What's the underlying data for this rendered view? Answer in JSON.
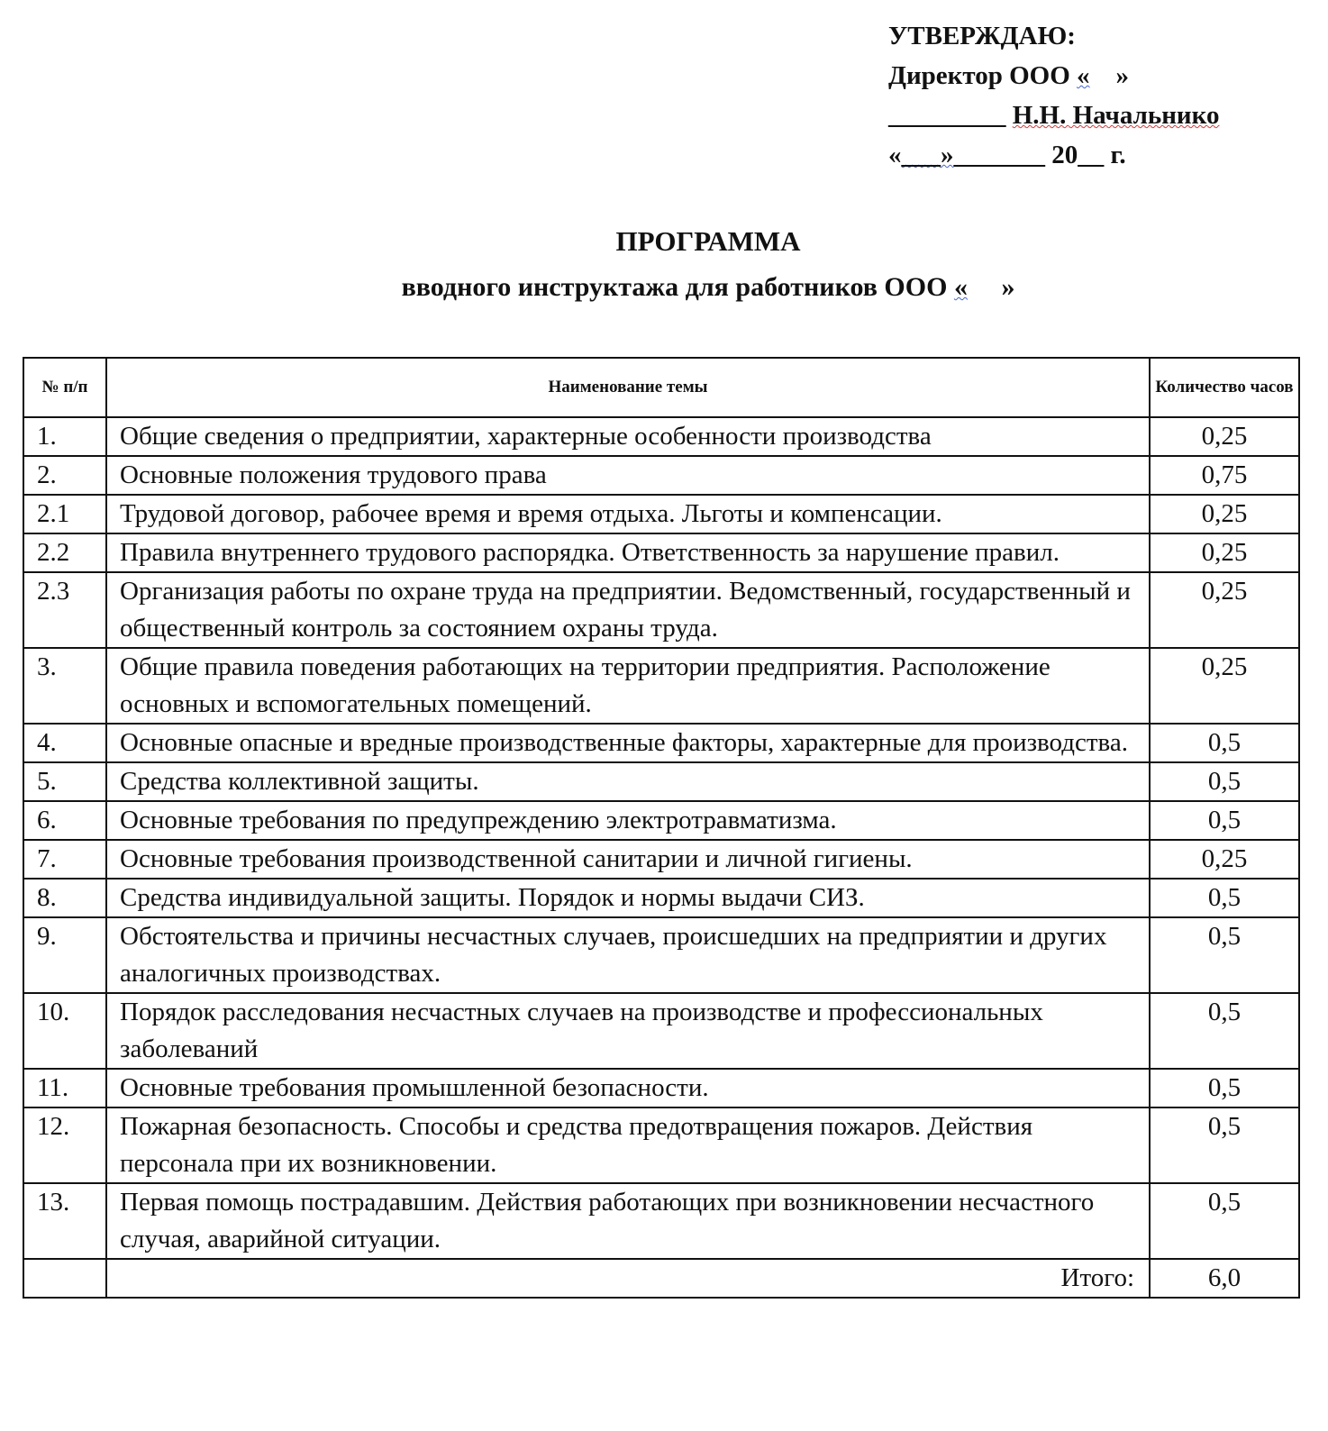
{
  "approval": {
    "line1": "УТВЕРЖДАЮ:",
    "line2_prefix": "Директор ООО ",
    "line2_quote_open": "«",
    "line2_quote_close": "    »",
    "line3_blank": "_________ ",
    "line3_name": "Н.Н. Начальнико",
    "line4_prefix": "«",
    "line4_mid": "___»",
    "line4_rest": "_______ 20__ г."
  },
  "title": "ПРОГРАММА",
  "subtitle_prefix": "вводного инструктажа для работников ООО ",
  "subtitle_quote_open": "«",
  "subtitle_quote_close": "     »",
  "table": {
    "headers": [
      "№ п/п",
      "Наименование темы",
      "Количество часов"
    ],
    "rows": [
      {
        "num": "1.",
        "topic": "Общие сведения о предприятии, характерные особенности производства",
        "hours": "0,25"
      },
      {
        "num": "2.",
        "topic": "Основные положения трудового права",
        "hours": "0,75"
      },
      {
        "num": "2.1",
        "topic": "Трудовой договор, рабочее время и время отдыха. Льготы и компенсации.",
        "hours": "0,25"
      },
      {
        "num": "2.2",
        "topic": "Правила внутреннего трудового распорядка. Ответственность за нарушение правил.",
        "hours": "0,25"
      },
      {
        "num": "2.3",
        "topic": "Организация работы по охране труда на предприятии. Ведомственный, государственный и общественный контроль за состоянием охраны труда.",
        "hours": "0,25"
      },
      {
        "num": "3.",
        "topic": "Общие правила поведения работающих на территории предприятия. Расположение основных и вспомогательных помещений.",
        "hours": "0,25"
      },
      {
        "num": "4.",
        "topic": "Основные опасные и вредные производственные факторы, характерные для производства.",
        "hours": "0,5"
      },
      {
        "num": "5.",
        "topic": "Средства коллективной защиты.",
        "hours": "0,5"
      },
      {
        "num": "6.",
        "topic": "Основные требования по предупреждению электротравматизма.",
        "hours": "0,5"
      },
      {
        "num": "7.",
        "topic": "Основные требования производственной санитарии и личной гигиены.",
        "hours": "0,25"
      },
      {
        "num": "8.",
        "topic": "Средства индивидуальной защиты. Порядок и нормы выдачи СИЗ.",
        "hours": "0,5"
      },
      {
        "num": "9.",
        "topic": "Обстоятельства и причины несчастных случаев, происшедших на предприятии и других аналогичных производствах.",
        "hours": "0,5"
      },
      {
        "num": "10.",
        "topic": "Порядок расследования несчастных случаев на производстве и профессиональных заболеваний",
        "hours": "0,5"
      },
      {
        "num": "11.",
        "topic": "Основные требования промышленной безопасности.",
        "hours": "0,5"
      },
      {
        "num": "12.",
        "topic": "Пожарная безопасность. Способы и средства предотвращения пожаров. Действия персонала при их возникновении.",
        "hours": "0,5"
      },
      {
        "num": "13.",
        "topic": "Первая помощь пострадавшим. Действия работающих при возникновении несчастного случая, аварийной ситуации.",
        "hours": "0,5"
      }
    ],
    "total_label": "Итого:",
    "total_value": "6,0"
  }
}
